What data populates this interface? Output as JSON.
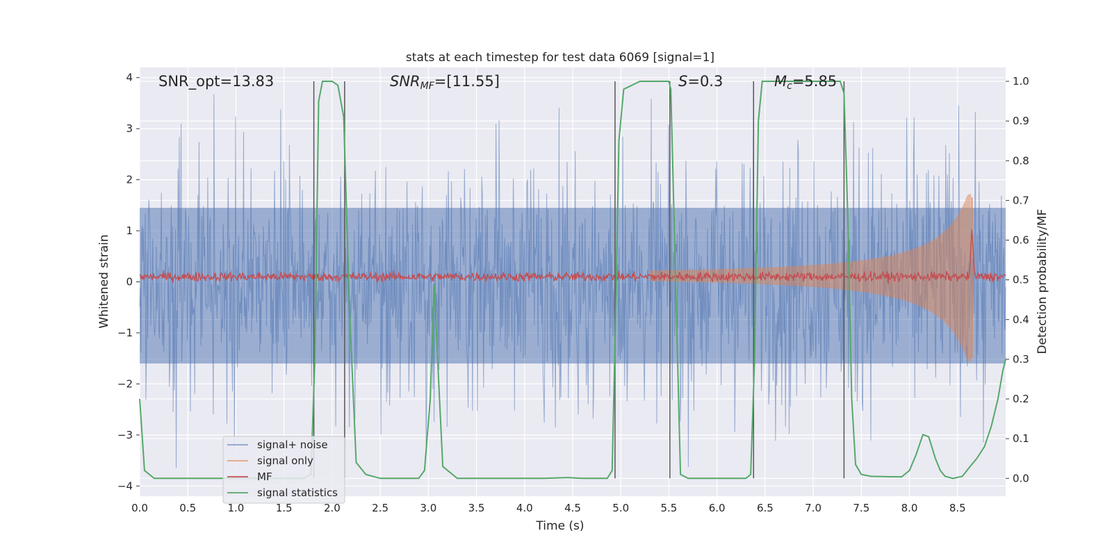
{
  "chart_data": {
    "type": "line",
    "title": "stats at each timestep for test data 6069 [signal=1]",
    "xlabel": "Time (s)",
    "ylabel": "Whitened strain",
    "ylabel_right": "Detection probability/MF",
    "xlim": [
      0,
      9
    ],
    "ylim": [
      -4.2,
      4.2
    ],
    "ylim_right": [
      -0.045,
      1.035
    ],
    "xticks": [
      "0.0",
      "0.5",
      "1.0",
      "1.5",
      "2.0",
      "2.5",
      "3.0",
      "3.5",
      "4.0",
      "4.5",
      "5.0",
      "5.5",
      "6.0",
      "6.5",
      "7.0",
      "7.5",
      "8.0",
      "8.5"
    ],
    "yticks": [
      "4",
      "3",
      "2",
      "1",
      "0",
      "−1",
      "−2",
      "−3",
      "−4"
    ],
    "yticks_right": [
      "1.0",
      "0.9",
      "0.8",
      "0.7",
      "0.6",
      "0.5",
      "0.4",
      "0.3",
      "0.2",
      "0.1",
      "0.0"
    ],
    "annotations": [
      {
        "text": "SNR_opt=13.83",
        "math": false
      },
      {
        "math": true,
        "base": "SNR",
        "sub": "MF",
        "rest": "=[11.55]"
      },
      {
        "math": true,
        "base": "S",
        "sub": "",
        "rest": "=0.3"
      },
      {
        "math": true,
        "base": "M",
        "sub": "c",
        "rest": "=5.85"
      }
    ],
    "legend": {
      "location": "lower-left",
      "entries": [
        {
          "label": "signal+ noise",
          "color": "#4c72b0"
        },
        {
          "label": "signal only",
          "color": "#dd8452"
        },
        {
          "label": "MF",
          "color": "#c44e52"
        },
        {
          "label": "signal statistics",
          "color": "#55a868"
        }
      ]
    },
    "colors": {
      "background": "#eaeaf2",
      "grid": "#ffffff",
      "noise": "#4c72b0",
      "signal": "#dd8452",
      "mf": "#c44e52",
      "stat": "#55a868",
      "vline": "#555555"
    },
    "vlines": [
      1.81,
      2.13,
      4.94,
      5.51,
      6.38,
      7.32
    ],
    "signal_statistics": {
      "x": [
        0.0,
        0.05,
        0.15,
        0.3,
        0.5,
        1.0,
        1.5,
        1.7,
        1.78,
        1.82,
        1.86,
        1.9,
        2.0,
        2.06,
        2.12,
        2.18,
        2.25,
        2.35,
        2.5,
        2.8,
        2.9,
        2.96,
        3.02,
        3.06,
        3.1,
        3.15,
        3.3,
        3.5,
        4.0,
        4.2,
        4.45,
        4.6,
        4.86,
        4.91,
        4.95,
        4.98,
        5.03,
        5.2,
        5.5,
        5.52,
        5.57,
        5.62,
        5.7,
        6.0,
        6.3,
        6.35,
        6.39,
        6.43,
        6.47,
        7.0,
        7.28,
        7.32,
        7.36,
        7.4,
        7.44,
        7.5,
        7.6,
        7.8,
        7.92,
        8.0,
        8.07,
        8.14,
        8.2,
        8.27,
        8.32,
        8.37,
        8.45,
        8.55,
        8.63,
        8.7,
        8.78,
        8.85,
        8.92,
        8.97,
        9.0
      ],
      "y": [
        0.2,
        0.02,
        0.0,
        0.0,
        0.0,
        0.0,
        0.0,
        0.0,
        0.01,
        0.3,
        0.95,
        1.0,
        1.0,
        0.99,
        0.91,
        0.43,
        0.04,
        0.01,
        0.0,
        0.0,
        0.0,
        0.02,
        0.2,
        0.49,
        0.28,
        0.03,
        0.0,
        0.0,
        0.0,
        0.0,
        0.002,
        0.0,
        0.0,
        0.02,
        0.45,
        0.85,
        0.98,
        1.0,
        1.0,
        0.98,
        0.5,
        0.01,
        0.0,
        0.0,
        0.0,
        0.01,
        0.3,
        0.9,
        1.0,
        1.0,
        1.0,
        0.97,
        0.65,
        0.2,
        0.035,
        0.01,
        0.005,
        0.004,
        0.004,
        0.02,
        0.06,
        0.11,
        0.105,
        0.05,
        0.02,
        0.005,
        0.0,
        0.005,
        0.03,
        0.05,
        0.08,
        0.13,
        0.2,
        0.27,
        0.3
      ]
    }
  }
}
